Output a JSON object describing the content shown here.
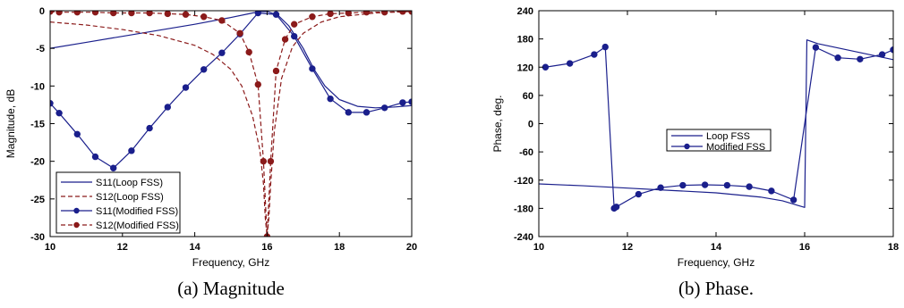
{
  "chart_data": [
    {
      "type": "line",
      "caption": "(a)  Magnitude",
      "xlabel": "Frequency, GHz",
      "ylabel": "Magnitude, dB",
      "xlim": [
        10,
        20
      ],
      "ylim": [
        -30,
        0
      ],
      "xticks": [
        10,
        12,
        14,
        16,
        18,
        20
      ],
      "yticks": [
        0,
        -5,
        -10,
        -15,
        -20,
        -25,
        -30
      ],
      "grid": false,
      "legend": "bottom-left",
      "colors": {
        "blue": "#1a1f8c",
        "red": "#8b1a1a"
      },
      "series": [
        {
          "name": "S11(Loop FSS)",
          "style": "solid",
          "color": "#1a1f8c",
          "markers": false,
          "x": [
            10,
            11,
            12,
            13,
            14,
            15,
            15.5,
            15.8,
            16.0,
            16.3,
            16.6,
            17.0,
            17.3,
            17.6,
            18.0,
            18.5,
            19.0,
            19.5,
            20.0
          ],
          "y": [
            -5.0,
            -4.2,
            -3.4,
            -2.6,
            -1.8,
            -0.9,
            -0.4,
            -0.1,
            -0.1,
            -0.6,
            -2.0,
            -5.0,
            -7.8,
            -10.0,
            -11.8,
            -12.7,
            -12.9,
            -12.8,
            -12.6
          ]
        },
        {
          "name": "S12(Loop FSS)",
          "style": "dashed",
          "color": "#8b1a1a",
          "markers": false,
          "x": [
            10,
            11,
            12,
            13,
            14,
            14.5,
            15.0,
            15.3,
            15.6,
            15.8,
            15.9,
            15.95,
            16.0,
            16.05,
            16.1,
            16.2,
            16.4,
            16.7,
            17.0,
            17.5,
            18,
            19,
            20
          ],
          "y": [
            -1.5,
            -1.9,
            -2.5,
            -3.3,
            -4.6,
            -5.8,
            -7.8,
            -10.0,
            -14.0,
            -18.5,
            -23.0,
            -27.5,
            -30,
            -27.5,
            -23.0,
            -16.0,
            -9.0,
            -4.8,
            -3.0,
            -1.5,
            -0.8,
            -0.3,
            -0.1
          ]
        },
        {
          "name": "S11(Modified FSS)",
          "style": "solid",
          "color": "#1a1f8c",
          "markers": true,
          "x": [
            10.0,
            10.25,
            10.75,
            11.25,
            11.75,
            12.25,
            12.75,
            13.25,
            13.75,
            14.25,
            14.75,
            15.25,
            15.75,
            16.25,
            16.75,
            17.25,
            17.75,
            18.25,
            18.75,
            19.25,
            19.75,
            20.0
          ],
          "y": [
            -12.3,
            -13.6,
            -16.4,
            -19.4,
            -20.9,
            -18.6,
            -15.6,
            -12.8,
            -10.2,
            -7.8,
            -5.6,
            -3.1,
            -0.3,
            -0.5,
            -3.4,
            -7.7,
            -11.7,
            -13.5,
            -13.5,
            -12.9,
            -12.2,
            -12.1
          ]
        },
        {
          "name": "S12(Modified FSS)",
          "style": "dashed",
          "color": "#8b1a1a",
          "markers": true,
          "x": [
            10.0,
            10.25,
            10.75,
            11.25,
            11.75,
            12.25,
            12.75,
            13.25,
            13.75,
            14.25,
            14.75,
            15.25,
            15.5,
            15.75,
            15.9,
            16.0,
            16.1,
            16.25,
            16.5,
            16.75,
            17.25,
            17.75,
            18.25,
            18.75,
            19.25,
            19.75,
            20.0
          ],
          "y": [
            -0.1,
            -0.2,
            -0.2,
            -0.2,
            -0.3,
            -0.3,
            -0.3,
            -0.4,
            -0.5,
            -0.8,
            -1.3,
            -3.0,
            -5.5,
            -9.8,
            -20.0,
            -30,
            -20.0,
            -8.0,
            -3.8,
            -1.8,
            -0.8,
            -0.4,
            -0.3,
            -0.2,
            -0.2,
            -0.1,
            -0.1
          ]
        }
      ]
    },
    {
      "type": "line",
      "caption": "(b) Phase.",
      "xlabel": "Frequency, GHz",
      "ylabel": "Phase, deg.",
      "xlim": [
        10,
        18
      ],
      "ylim": [
        -240,
        240
      ],
      "xticks": [
        10,
        12,
        14,
        16,
        18
      ],
      "yticks": [
        240,
        180,
        120,
        60,
        0,
        -60,
        -120,
        -180,
        -240
      ],
      "grid": false,
      "legend": "center",
      "colors": {
        "blue": "#1a1f8c"
      },
      "series": [
        {
          "name": "Loop FSS",
          "style": "solid",
          "color": "#1a1f8c",
          "markers": false,
          "x": [
            10,
            11,
            12,
            13,
            14,
            15,
            15.5,
            16.0,
            16.05,
            16.3,
            16.8,
            17.3,
            17.8,
            18.0
          ],
          "y": [
            -128,
            -132,
            -137,
            -142,
            -147,
            -156,
            -164,
            -178,
            178,
            170,
            160,
            150,
            140,
            136
          ]
        },
        {
          "name": "Modified FSS",
          "style": "solid",
          "color": "#1a1f8c",
          "markers": true,
          "x": [
            10.15,
            10.7,
            11.25,
            11.5,
            11.7,
            11.75,
            12.25,
            12.75,
            13.25,
            13.75,
            14.25,
            14.75,
            15.25,
            15.75,
            16.25,
            16.75,
            17.25,
            17.75,
            18.0
          ],
          "y": [
            120,
            128,
            147,
            163,
            -180,
            -177,
            -150,
            -136,
            -131,
            -130,
            -131,
            -134,
            -143,
            -162,
            162,
            140,
            137,
            147,
            157
          ]
        }
      ]
    }
  ]
}
